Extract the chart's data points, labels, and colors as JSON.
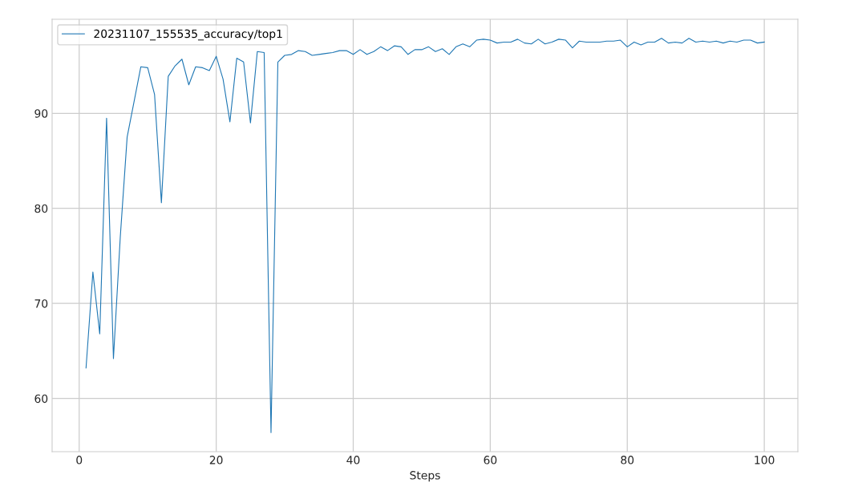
{
  "chart_data": {
    "type": "line",
    "xlabel": "Steps",
    "x": [
      1,
      2,
      3,
      4,
      5,
      6,
      7,
      8,
      9,
      10,
      11,
      12,
      13,
      14,
      15,
      16,
      17,
      18,
      19,
      20,
      21,
      22,
      23,
      24,
      25,
      26,
      27,
      28,
      29,
      30,
      31,
      32,
      33,
      34,
      35,
      36,
      37,
      38,
      39,
      40,
      41,
      42,
      43,
      44,
      45,
      46,
      47,
      48,
      49,
      50,
      51,
      52,
      53,
      54,
      55,
      56,
      57,
      58,
      59,
      60,
      61,
      62,
      63,
      64,
      65,
      66,
      67,
      68,
      69,
      70,
      71,
      72,
      73,
      74,
      75,
      76,
      77,
      78,
      79,
      80,
      81,
      82,
      83,
      84,
      85,
      86,
      87,
      88,
      89,
      90,
      91,
      92,
      93,
      94,
      95,
      96,
      97,
      98,
      99,
      100
    ],
    "series": [
      {
        "name": "20231107_155535_accuracy/top1",
        "color": "#1f77b4",
        "values": [
          63.2,
          73.3,
          66.8,
          89.5,
          64.2,
          77,
          87.5,
          91.2,
          94.9,
          94.8,
          92,
          80.6,
          93.9,
          95,
          95.7,
          93,
          94.9,
          94.8,
          94.5,
          96,
          93.6,
          89.1,
          95.8,
          95.4,
          89,
          96.5,
          96.4,
          56.4,
          95.4,
          96.1,
          96.2,
          96.6,
          96.5,
          96.1,
          96.2,
          96.3,
          96.4,
          96.6,
          96.6,
          96.2,
          96.7,
          96.2,
          96.5,
          97,
          96.6,
          97.1,
          97,
          96.2,
          96.7,
          96.7,
          97,
          96.5,
          96.8,
          96.2,
          97,
          97.3,
          97,
          97.7,
          97.8,
          97.7,
          97.4,
          97.5,
          97.5,
          97.8,
          97.4,
          97.3,
          97.8,
          97.3,
          97.5,
          97.8,
          97.7,
          96.9,
          97.6,
          97.5,
          97.5,
          97.5,
          97.6,
          97.6,
          97.7,
          97.0,
          97.5,
          97.2,
          97.5,
          97.5,
          97.9,
          97.4,
          97.5,
          97.4,
          97.9,
          97.5,
          97.6,
          97.5,
          97.6,
          97.4,
          97.6,
          97.5,
          97.7,
          97.7,
          97.4,
          97.5
        ]
      }
    ],
    "xlim": [
      -3.95,
      104.9
    ],
    "ylim": [
      54.4,
      99.9
    ],
    "xticks": [
      0,
      20,
      40,
      60,
      80,
      100
    ],
    "yticks": [
      60,
      70,
      80,
      90
    ],
    "grid": true,
    "legend": "top left",
    "marker": "none",
    "line_style": "solid"
  }
}
